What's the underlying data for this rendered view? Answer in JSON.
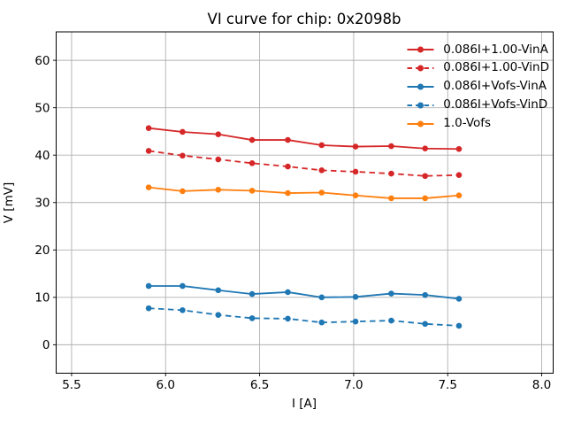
{
  "chart_data": {
    "type": "line",
    "title": "VI curve for chip: 0x2098b",
    "xlabel": "I [A]",
    "ylabel": "V [mV]",
    "xlim": [
      5.418,
      8.061
    ],
    "ylim": [
      -6.0,
      66.0
    ],
    "xticks": [
      5.5,
      6.0,
      6.5,
      7.0,
      7.5,
      8.0
    ],
    "xtick_labels": [
      "5.5",
      "6.0",
      "6.5",
      "7.0",
      "7.5",
      "8.0"
    ],
    "yticks": [
      0,
      10,
      20,
      30,
      40,
      50,
      60
    ],
    "ytick_labels": [
      "0",
      "10",
      "20",
      "30",
      "40",
      "50",
      "60"
    ],
    "grid": true,
    "grid_color": "#b0b0b0",
    "spine_color": "#000000",
    "legend_position": "upper right",
    "legend_frame": false,
    "x": [
      5.91,
      6.09,
      6.28,
      6.46,
      6.65,
      6.83,
      7.01,
      7.2,
      7.38,
      7.56
    ],
    "series": [
      {
        "name": "0.086I+1.00-VinA",
        "color": "#d62728",
        "style": "solid",
        "marker": "circle",
        "values": [
          45.7,
          44.9,
          44.4,
          43.2,
          43.2,
          42.1,
          41.8,
          41.9,
          41.4,
          41.3
        ]
      },
      {
        "name": "0.086I+1.00-VinD",
        "color": "#d62728",
        "style": "dashed",
        "marker": "circle",
        "values": [
          40.9,
          39.9,
          39.1,
          38.3,
          37.6,
          36.8,
          36.5,
          36.1,
          35.6,
          35.8
        ]
      },
      {
        "name": "0.086I+Vofs-VinA",
        "color": "#1f77b4",
        "style": "solid",
        "marker": "circle",
        "values": [
          12.4,
          12.4,
          11.5,
          10.7,
          11.1,
          10.0,
          10.1,
          10.8,
          10.5,
          9.7
        ]
      },
      {
        "name": "0.086I+Vofs-VinD",
        "color": "#1f77b4",
        "style": "dashed",
        "marker": "circle",
        "values": [
          7.7,
          7.3,
          6.3,
          5.6,
          5.5,
          4.7,
          4.9,
          5.1,
          4.4,
          4.0
        ]
      },
      {
        "name": "1.0-Vofs",
        "color": "#ff7f0e",
        "style": "solid",
        "marker": "circle",
        "values": [
          33.2,
          32.4,
          32.7,
          32.5,
          32.0,
          32.1,
          31.5,
          30.9,
          30.9,
          31.5
        ]
      }
    ]
  }
}
